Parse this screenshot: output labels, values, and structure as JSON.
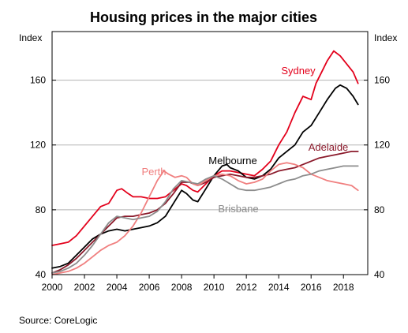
{
  "chart_data": {
    "type": "line",
    "title": "Housing prices in the major cities",
    "ylabel_left": "Index",
    "ylabel_right": "Index",
    "source": "Source: CoreLogic",
    "xlim": [
      2000,
      2019.5
    ],
    "ylim": [
      40,
      190
    ],
    "x_ticks": [
      "2000",
      "2002",
      "2004",
      "2006",
      "2008",
      "2010",
      "2012",
      "2014",
      "2016",
      "2018"
    ],
    "y_ticks": [
      "40",
      "80",
      "120",
      "160"
    ],
    "grid": true,
    "series": [
      {
        "name": "Sydney",
        "color": "#e3001b",
        "points": [
          [
            2000,
            58
          ],
          [
            2000.5,
            59
          ],
          [
            2001,
            60
          ],
          [
            2001.5,
            64
          ],
          [
            2002,
            70
          ],
          [
            2002.5,
            76
          ],
          [
            2003,
            82
          ],
          [
            2003.5,
            84
          ],
          [
            2004,
            92
          ],
          [
            2004.3,
            93
          ],
          [
            2004.7,
            90
          ],
          [
            2005,
            88
          ],
          [
            2005.5,
            88
          ],
          [
            2006,
            87
          ],
          [
            2006.5,
            87
          ],
          [
            2007,
            88
          ],
          [
            2007.5,
            92
          ],
          [
            2008,
            96
          ],
          [
            2008.3,
            95
          ],
          [
            2008.7,
            92
          ],
          [
            2009,
            91
          ],
          [
            2009.5,
            96
          ],
          [
            2010,
            101
          ],
          [
            2010.5,
            104
          ],
          [
            2011,
            104
          ],
          [
            2011.5,
            103
          ],
          [
            2012,
            102
          ],
          [
            2012.5,
            101
          ],
          [
            2013,
            105
          ],
          [
            2013.5,
            110
          ],
          [
            2014,
            120
          ],
          [
            2014.5,
            128
          ],
          [
            2015,
            140
          ],
          [
            2015.5,
            150
          ],
          [
            2016,
            148
          ],
          [
            2016.3,
            158
          ],
          [
            2016.7,
            166
          ],
          [
            2017,
            172
          ],
          [
            2017.4,
            178
          ],
          [
            2017.8,
            175
          ],
          [
            2018.2,
            170
          ],
          [
            2018.6,
            165
          ],
          [
            2018.9,
            158
          ]
        ]
      },
      {
        "name": "Melbourne",
        "color": "#000000",
        "points": [
          [
            2000,
            44
          ],
          [
            2000.5,
            45
          ],
          [
            2001,
            47
          ],
          [
            2001.5,
            52
          ],
          [
            2002,
            57
          ],
          [
            2002.5,
            62
          ],
          [
            2003,
            65
          ],
          [
            2003.5,
            67
          ],
          [
            2004,
            68
          ],
          [
            2004.5,
            67
          ],
          [
            2005,
            68
          ],
          [
            2005.5,
            69
          ],
          [
            2006,
            70
          ],
          [
            2006.5,
            72
          ],
          [
            2007,
            76
          ],
          [
            2007.5,
            84
          ],
          [
            2008,
            92
          ],
          [
            2008.3,
            90
          ],
          [
            2008.7,
            86
          ],
          [
            2009,
            85
          ],
          [
            2009.5,
            93
          ],
          [
            2010,
            101
          ],
          [
            2010.5,
            107
          ],
          [
            2010.8,
            108
          ],
          [
            2011,
            106
          ],
          [
            2011.5,
            104
          ],
          [
            2012,
            100
          ],
          [
            2012.5,
            99
          ],
          [
            2013,
            101
          ],
          [
            2013.5,
            105
          ],
          [
            2014,
            112
          ],
          [
            2014.5,
            116
          ],
          [
            2015,
            120
          ],
          [
            2015.5,
            128
          ],
          [
            2016,
            132
          ],
          [
            2016.5,
            140
          ],
          [
            2017,
            148
          ],
          [
            2017.5,
            155
          ],
          [
            2017.8,
            157
          ],
          [
            2018.2,
            155
          ],
          [
            2018.6,
            150
          ],
          [
            2018.9,
            145
          ]
        ]
      },
      {
        "name": "Adelaide",
        "color": "#8b1a2b",
        "points": [
          [
            2000,
            41
          ],
          [
            2000.5,
            43
          ],
          [
            2001,
            46
          ],
          [
            2001.5,
            50
          ],
          [
            2002,
            55
          ],
          [
            2002.5,
            60
          ],
          [
            2003,
            65
          ],
          [
            2003.5,
            70
          ],
          [
            2004,
            75
          ],
          [
            2004.5,
            76
          ],
          [
            2005,
            76
          ],
          [
            2005.5,
            77
          ],
          [
            2006,
            78
          ],
          [
            2006.5,
            80
          ],
          [
            2007,
            84
          ],
          [
            2007.5,
            90
          ],
          [
            2008,
            97
          ],
          [
            2008.5,
            97
          ],
          [
            2009,
            95
          ],
          [
            2009.5,
            97
          ],
          [
            2010,
            100
          ],
          [
            2010.5,
            101
          ],
          [
            2011,
            102
          ],
          [
            2011.5,
            101
          ],
          [
            2012,
            100
          ],
          [
            2012.5,
            100
          ],
          [
            2013,
            101
          ],
          [
            2013.5,
            102
          ],
          [
            2014,
            104
          ],
          [
            2014.5,
            105
          ],
          [
            2015,
            106
          ],
          [
            2015.5,
            108
          ],
          [
            2016,
            110
          ],
          [
            2016.5,
            112
          ],
          [
            2017,
            113
          ],
          [
            2017.5,
            114
          ],
          [
            2018,
            115
          ],
          [
            2018.5,
            116
          ],
          [
            2018.9,
            116
          ]
        ]
      },
      {
        "name": "Perth",
        "color": "#f07f7f",
        "points": [
          [
            2000,
            40
          ],
          [
            2000.5,
            41
          ],
          [
            2001,
            42
          ],
          [
            2001.5,
            44
          ],
          [
            2002,
            47
          ],
          [
            2002.5,
            51
          ],
          [
            2003,
            55
          ],
          [
            2003.5,
            58
          ],
          [
            2004,
            60
          ],
          [
            2004.5,
            64
          ],
          [
            2005,
            70
          ],
          [
            2005.5,
            78
          ],
          [
            2006,
            88
          ],
          [
            2006.5,
            98
          ],
          [
            2006.9,
            104
          ],
          [
            2007.2,
            102
          ],
          [
            2007.6,
            100
          ],
          [
            2008,
            101
          ],
          [
            2008.3,
            100
          ],
          [
            2008.7,
            96
          ],
          [
            2009,
            95
          ],
          [
            2009.5,
            98
          ],
          [
            2010,
            101
          ],
          [
            2010.5,
            102
          ],
          [
            2011,
            101
          ],
          [
            2011.5,
            98
          ],
          [
            2012,
            96
          ],
          [
            2012.5,
            97
          ],
          [
            2013,
            99
          ],
          [
            2013.5,
            104
          ],
          [
            2014,
            108
          ],
          [
            2014.5,
            109
          ],
          [
            2015,
            108
          ],
          [
            2015.5,
            106
          ],
          [
            2016,
            102
          ],
          [
            2016.5,
            100
          ],
          [
            2017,
            98
          ],
          [
            2017.5,
            97
          ],
          [
            2018,
            96
          ],
          [
            2018.5,
            95
          ],
          [
            2018.9,
            92
          ]
        ]
      },
      {
        "name": "Brisbane",
        "color": "#8c8c8c",
        "points": [
          [
            2000,
            41
          ],
          [
            2000.5,
            42
          ],
          [
            2001,
            44
          ],
          [
            2001.5,
            47
          ],
          [
            2002,
            52
          ],
          [
            2002.5,
            58
          ],
          [
            2003,
            65
          ],
          [
            2003.5,
            72
          ],
          [
            2004,
            76
          ],
          [
            2004.5,
            75
          ],
          [
            2005,
            74
          ],
          [
            2005.5,
            75
          ],
          [
            2006,
            76
          ],
          [
            2006.5,
            79
          ],
          [
            2007,
            85
          ],
          [
            2007.5,
            93
          ],
          [
            2008,
            98
          ],
          [
            2008.5,
            97
          ],
          [
            2009,
            96
          ],
          [
            2009.5,
            99
          ],
          [
            2010,
            101
          ],
          [
            2010.5,
            99
          ],
          [
            2011,
            96
          ],
          [
            2011.5,
            93
          ],
          [
            2012,
            92
          ],
          [
            2012.5,
            92
          ],
          [
            2013,
            93
          ],
          [
            2013.5,
            94
          ],
          [
            2014,
            96
          ],
          [
            2014.5,
            98
          ],
          [
            2015,
            99
          ],
          [
            2015.5,
            101
          ],
          [
            2016,
            102
          ],
          [
            2016.5,
            104
          ],
          [
            2017,
            105
          ],
          [
            2017.5,
            106
          ],
          [
            2018,
            107
          ],
          [
            2018.5,
            107
          ],
          [
            2018.9,
            107
          ]
        ]
      }
    ]
  }
}
